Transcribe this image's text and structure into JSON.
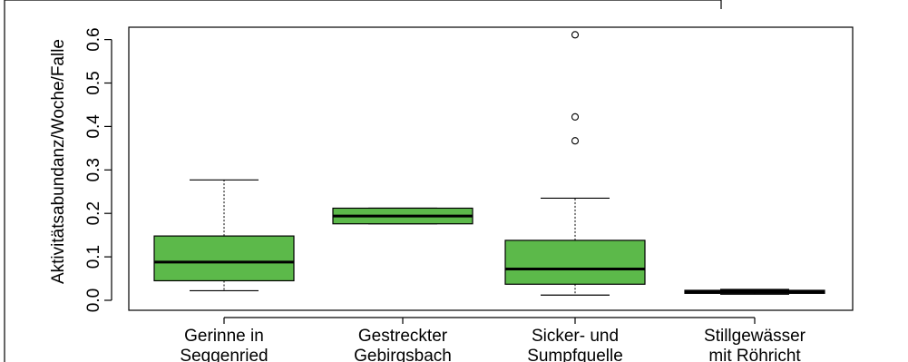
{
  "chart_data": {
    "type": "boxplot",
    "title": "",
    "xlabel": "",
    "ylabel": "Aktivitätsabundanz/Woche/Falle",
    "ylim": [
      -0.01,
      0.63
    ],
    "y_ticks": [
      0.0,
      0.1,
      0.2,
      0.3,
      0.4,
      0.5,
      0.6
    ],
    "y_tick_labels": [
      "0.0",
      "0.1",
      "0.2",
      "0.3",
      "0.4",
      "0.5",
      "0.6"
    ],
    "categories": [
      [
        "Gerinne in",
        "Seggenried"
      ],
      [
        "Gestreckter",
        "Gebirgsbach"
      ],
      [
        "Sicker- und",
        "Sumpfquelle"
      ],
      [
        "Stillgewässer",
        "mit Röhricht"
      ]
    ],
    "box_color": "#5cb94a",
    "grid": false,
    "legend": "none",
    "boxes": [
      {
        "whisker_low": 0.022,
        "q1": 0.045,
        "median": 0.088,
        "q3": 0.148,
        "whisker_high": 0.277,
        "outliers": []
      },
      {
        "whisker_low": 0.176,
        "q1": 0.176,
        "median": 0.194,
        "q3": 0.212,
        "whisker_high": 0.212,
        "outliers": []
      },
      {
        "whisker_low": 0.012,
        "q1": 0.037,
        "median": 0.072,
        "q3": 0.138,
        "whisker_high": 0.235,
        "outliers": [
          0.367,
          0.422,
          0.611
        ]
      },
      {
        "whisker_low": 0.014,
        "q1": 0.016,
        "median": 0.019,
        "q3": 0.023,
        "whisker_high": 0.025,
        "outliers": []
      }
    ]
  }
}
